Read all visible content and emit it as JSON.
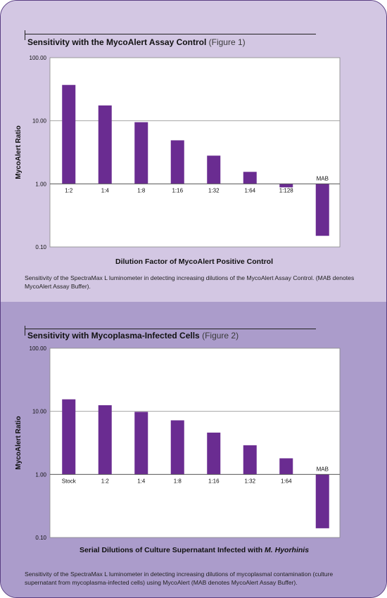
{
  "figures": [
    {
      "title": "Sensitivity with the MycoAlert Assay Control",
      "figure_ref": "(Figure 1)",
      "x_title": "Dilution Factor of MycoAlert Positive Control",
      "caption": "Sensitivity of the SpectraMax L luminometer in detecting increasing dilutions of the MycoAlert Assay Control. (MAB denotes MycoAlert Assay Buffer)."
    },
    {
      "title": "Sensitivity with Mycoplasma-Infected Cells",
      "figure_ref": "(Figure 2)",
      "x_title_main": "Serial Dilutions of Culture Supernatant Infected with ",
      "x_title_italic": "M. Hyorhinis",
      "caption": "Sensitivity of the SpectraMax L luminometer in detecting increasing dilutions of mycoplasmal contamination (culture supernatant from mycoplasma-infected cells) using MycoAlert (MAB denotes MycoAlert Assay Buffer)."
    }
  ],
  "chart_data": [
    {
      "type": "bar",
      "title": "Sensitivity with the MycoAlert Assay Control (Figure 1)",
      "xlabel": "Dilution Factor of MycoAlert Positive Control",
      "ylabel": "MycoAlert Ratio",
      "y_scale": "log",
      "ylim": [
        0.1,
        100
      ],
      "y_ticks": [
        "100.00",
        "10.00",
        "1.00",
        "0.10"
      ],
      "y_tick_values": [
        100,
        10,
        1,
        0.1
      ],
      "baseline": 1,
      "grid": true,
      "categories": [
        "1:2",
        "1:4",
        "1:8",
        "1:16",
        "1:32",
        "1:64",
        "1:128",
        "MAB"
      ],
      "values": [
        37,
        17.5,
        9.5,
        4.9,
        2.8,
        1.55,
        0.88,
        0.15
      ],
      "bar_color": "#6a2c91"
    },
    {
      "type": "bar",
      "title": "Sensitivity with Mycoplasma-Infected Cells (Figure 2)",
      "xlabel": "Serial Dilutions of Culture Supernatant Infected with M. Hyorhinis",
      "ylabel": "MycoAlert Ratio",
      "y_scale": "log",
      "ylim": [
        0.1,
        100
      ],
      "y_ticks": [
        "100.00",
        "10.00",
        "1.00",
        "0.10"
      ],
      "y_tick_values": [
        100,
        10,
        1,
        0.1
      ],
      "baseline": 1,
      "grid": true,
      "categories": [
        "Stock",
        "1:2",
        "1:4",
        "1:8",
        "1:16",
        "1:32",
        "1:64",
        "MAB"
      ],
      "values": [
        15.5,
        12.5,
        9.8,
        7.2,
        4.6,
        2.9,
        1.8,
        0.14
      ],
      "bar_color": "#6a2c91"
    }
  ]
}
